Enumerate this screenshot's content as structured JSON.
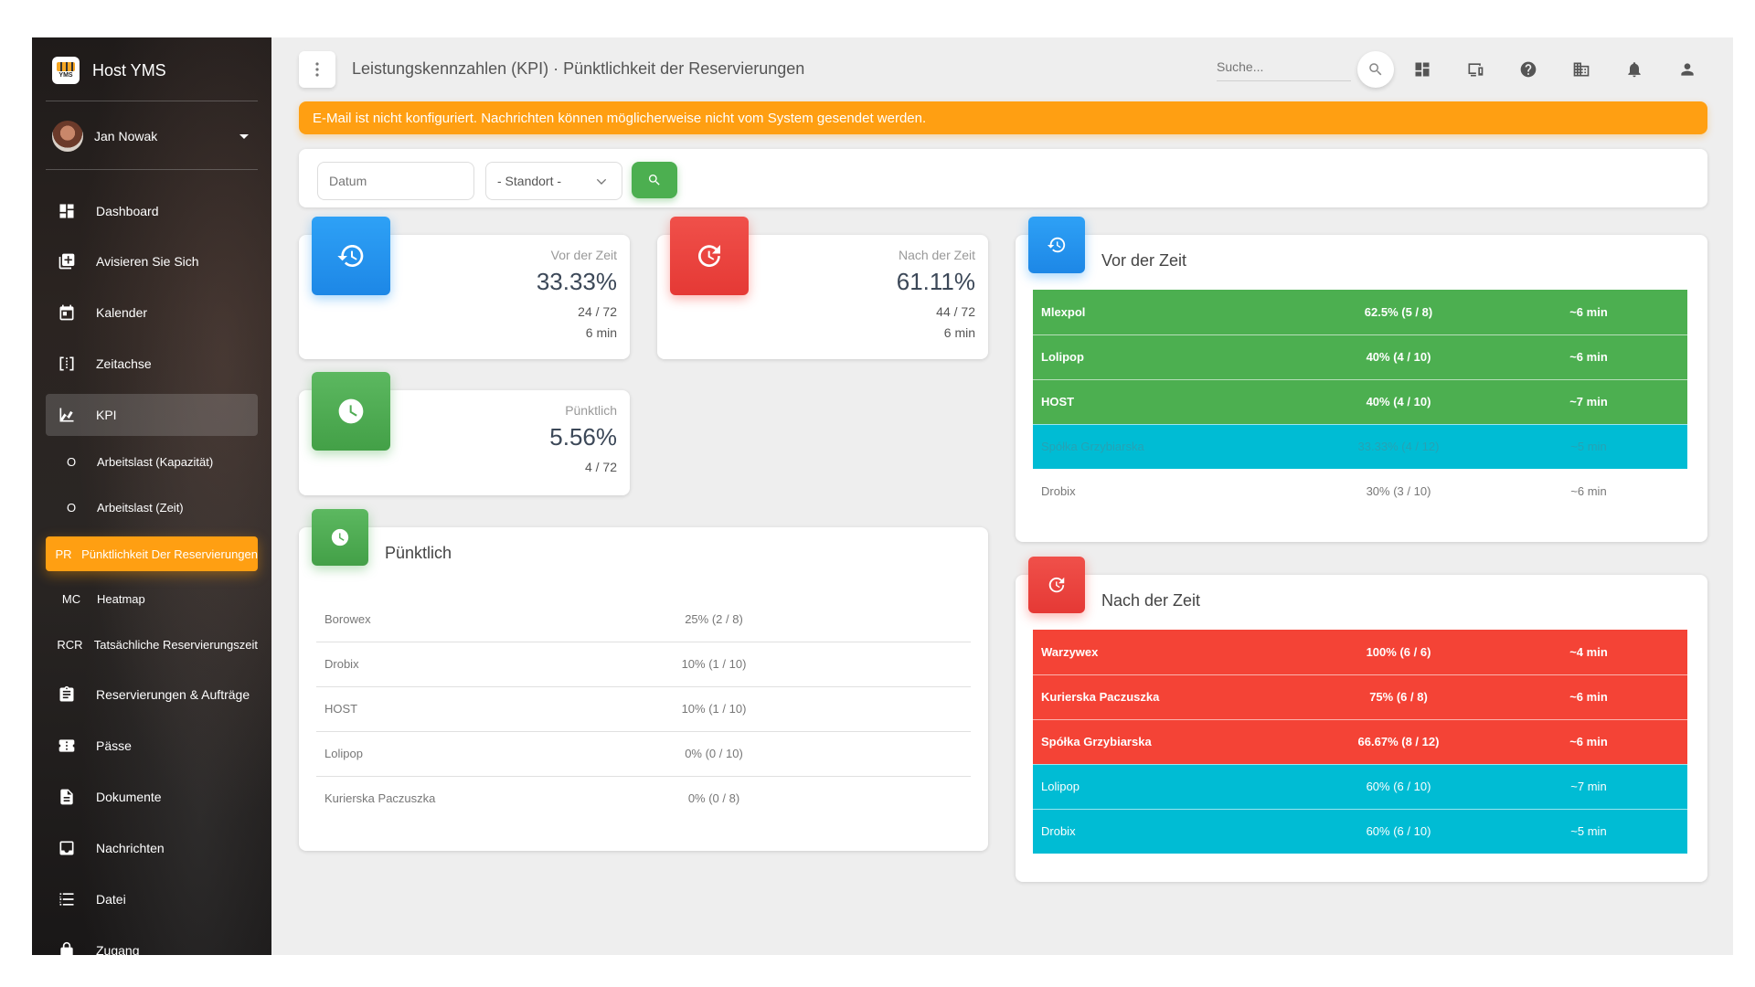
{
  "app": {
    "brand_name": "Host YMS",
    "brand_logo_text": "YMS"
  },
  "user": {
    "name": "Jan Nowak"
  },
  "sidebar": {
    "items": [
      {
        "label": "Dashboard",
        "icon": "dashboard-icon"
      },
      {
        "label": "Avisieren Sie Sich",
        "icon": "add-box-icon"
      },
      {
        "label": "Kalender",
        "icon": "calendar-icon"
      },
      {
        "label": "Zeitachse",
        "icon": "timeline-icon"
      },
      {
        "label": "KPI",
        "icon": "chart-icon",
        "active": true
      }
    ],
    "sub_items": [
      {
        "abbr": "O",
        "label": "Arbeitslast (Kapazität)"
      },
      {
        "abbr": "O",
        "label": "Arbeitslast (Zeit)"
      },
      {
        "abbr": "PR",
        "label": "Pünktlichkeit Der Reservierungen",
        "active": true
      },
      {
        "abbr": "MC",
        "label": "Heatmap"
      },
      {
        "abbr": "RCR",
        "label": "Tatsächliche Reservierungszeit"
      }
    ],
    "items_bottom": [
      {
        "label": "Reservierungen & Aufträge",
        "icon": "clipboard-icon"
      },
      {
        "label": "Pässe",
        "icon": "ticket-icon"
      },
      {
        "label": "Dokumente",
        "icon": "document-icon"
      },
      {
        "label": "Nachrichten",
        "icon": "inbox-icon"
      },
      {
        "label": "Datei",
        "icon": "list-icon"
      },
      {
        "label": "Zugang",
        "icon": "lock-icon"
      }
    ]
  },
  "header": {
    "title": "Leistungskennzahlen (KPI) · Pünktlichkeit der Reservierungen",
    "search_placeholder": "Suche..."
  },
  "alert": {
    "text": "E-Mail ist nicht konfiguriert. Nachrichten können möglicherweise nicht vom System gesendet werden."
  },
  "filters": {
    "date_placeholder": "Datum",
    "location_selected": "- Standort -"
  },
  "stats": {
    "early": {
      "label": "Vor der Zeit",
      "value": "33.33%",
      "count": "24 / 72",
      "time": "6 min"
    },
    "late": {
      "label": "Nach der Zeit",
      "value": "61.11%",
      "count": "44 / 72",
      "time": "6 min"
    },
    "ontime": {
      "label": "Pünktlich",
      "value": "5.56%",
      "count": "4 / 72"
    }
  },
  "punctual_table": {
    "title": "Pünktlich",
    "rows": [
      {
        "name": "Borowex",
        "pct": "25% (2 / 8)"
      },
      {
        "name": "Drobix",
        "pct": "10% (1 / 10)"
      },
      {
        "name": "HOST",
        "pct": "10% (1 / 10)"
      },
      {
        "name": "Lolipop",
        "pct": "0% (0 / 10)"
      },
      {
        "name": "Kurierska Paczuszka",
        "pct": "0% (0 / 8)"
      }
    ]
  },
  "early_table": {
    "title": "Vor der Zeit",
    "rows": [
      {
        "name": "Mlexpol",
        "pct": "62.5% (5 / 8)",
        "time": "~6 min",
        "style": "green"
      },
      {
        "name": "Lolipop",
        "pct": "40% (4 / 10)",
        "time": "~6 min",
        "style": "green"
      },
      {
        "name": "HOST",
        "pct": "40% (4 / 10)",
        "time": "~7 min",
        "style": "green"
      },
      {
        "name": "Spółka Grzybiarska",
        "pct": "33.33% (4 / 12)",
        "time": "~5 min",
        "style": "cyan-dim"
      },
      {
        "name": "Drobix",
        "pct": "30% (3 / 10)",
        "time": "~6 min",
        "style": "plain"
      }
    ]
  },
  "late_table": {
    "title": "Nach der Zeit",
    "rows": [
      {
        "name": "Warzywex",
        "pct": "100% (6 / 6)",
        "time": "~4 min",
        "style": "red"
      },
      {
        "name": "Kurierska Paczuszka",
        "pct": "75% (6 / 8)",
        "time": "~6 min",
        "style": "red"
      },
      {
        "name": "Spółka Grzybiarska",
        "pct": "66.67% (8 / 12)",
        "time": "~6 min",
        "style": "red"
      },
      {
        "name": "Lolipop",
        "pct": "60% (6 / 10)",
        "time": "~7 min",
        "style": "cyan"
      },
      {
        "name": "Drobix",
        "pct": "60% (6 / 10)",
        "time": "~5 min",
        "style": "cyan"
      }
    ]
  },
  "colors": {
    "accent": "#ff9f12",
    "green": "#4caf50",
    "red": "#f44336",
    "blue": "#2196f3",
    "cyan": "#00bcd4"
  }
}
